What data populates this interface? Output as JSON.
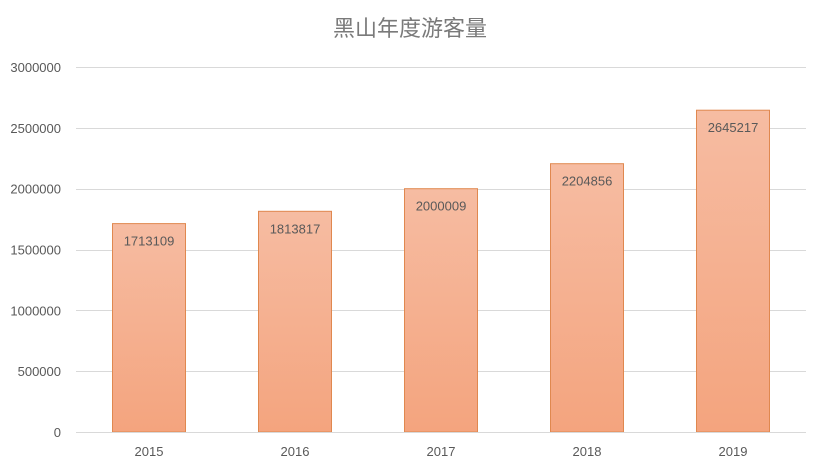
{
  "chart_data": {
    "type": "bar",
    "title": "黑山年度游客量",
    "xlabel": "",
    "ylabel": "",
    "categories": [
      "2015",
      "2016",
      "2017",
      "2018",
      "2019"
    ],
    "values": [
      1713109,
      1813817,
      2000009,
      2204856,
      2645217
    ],
    "value_labels": [
      "1713109",
      "1813817",
      "2000009",
      "2204856",
      "2645217"
    ],
    "ylim": [
      0,
      3000000
    ],
    "yticks": [
      0,
      500000,
      1000000,
      1500000,
      2000000,
      2500000,
      3000000
    ],
    "ytick_labels": [
      "0",
      "500000",
      "1000000",
      "1500000",
      "2000000",
      "2500000",
      "3000000"
    ],
    "grid": true,
    "legend": "none",
    "colors": {
      "bar_top": "#f6bca2",
      "bar_bottom": "#f4a47e",
      "bar_border": "#e0884f",
      "grid": "#d9d9d9",
      "text": "#595959",
      "title": "#7a7a7a"
    }
  }
}
